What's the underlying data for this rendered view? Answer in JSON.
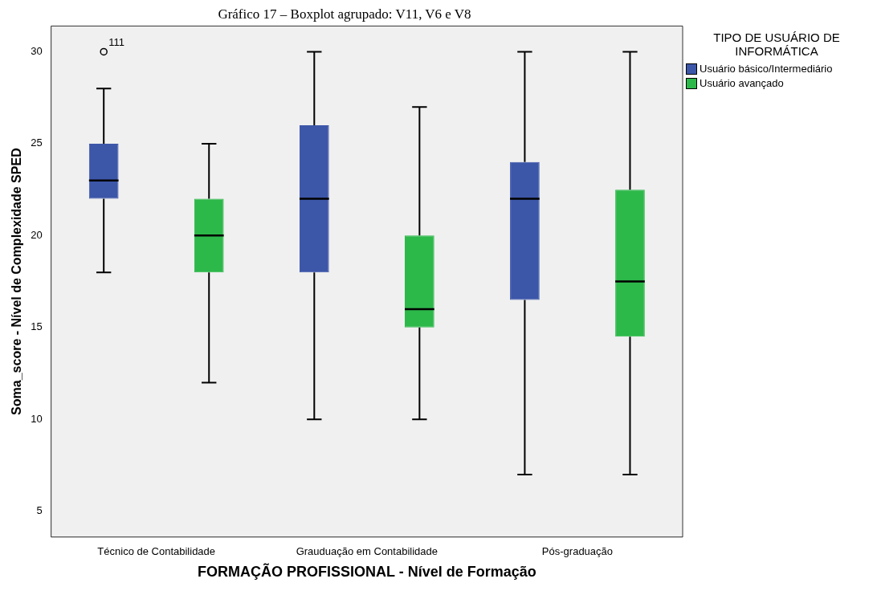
{
  "chart_data": {
    "type": "box",
    "title": "Gráfico 17 – Boxplot agrupado: V11, V6 e V8",
    "xlabel": "FORMAÇÃO PROFISSIONAL - Nível de Formação",
    "ylabel": "Soma_score - Nível de Complexidade SPED",
    "legend_title": "TIPO DE USUÁRIO DE INFORMÁTICA",
    "legend": "top right",
    "grid": false,
    "categories": [
      "Técnico de Contabilidade",
      "Grauduação em Contabilidade",
      "Pós-graduação"
    ],
    "ylim": [
      3.6,
      31.4
    ],
    "yticks": [
      5,
      10,
      15,
      20,
      25,
      30
    ],
    "series": [
      {
        "name": "Usuário básico/Intermediário",
        "color": "#3c56a8",
        "boxes": [
          {
            "low": 18,
            "q1": 22,
            "median": 23,
            "q3": 25,
            "high": 28,
            "outliers": [
              30
            ]
          },
          {
            "low": 10,
            "q1": 18,
            "median": 22,
            "q3": 26,
            "high": 30
          },
          {
            "low": 7,
            "q1": 16.5,
            "median": 22,
            "q3": 24,
            "high": 30
          }
        ]
      },
      {
        "name": "Usuário avançado",
        "color": "#2db84a",
        "boxes": [
          {
            "low": 12,
            "q1": 18,
            "median": 20,
            "q3": 22,
            "high": 25
          },
          {
            "low": 10,
            "q1": 15,
            "median": 16,
            "q3": 20,
            "high": 27
          },
          {
            "low": 7,
            "q1": 14.5,
            "median": 17.5,
            "q3": 22.5,
            "high": 30
          }
        ]
      }
    ],
    "annotations": [
      "111"
    ]
  }
}
